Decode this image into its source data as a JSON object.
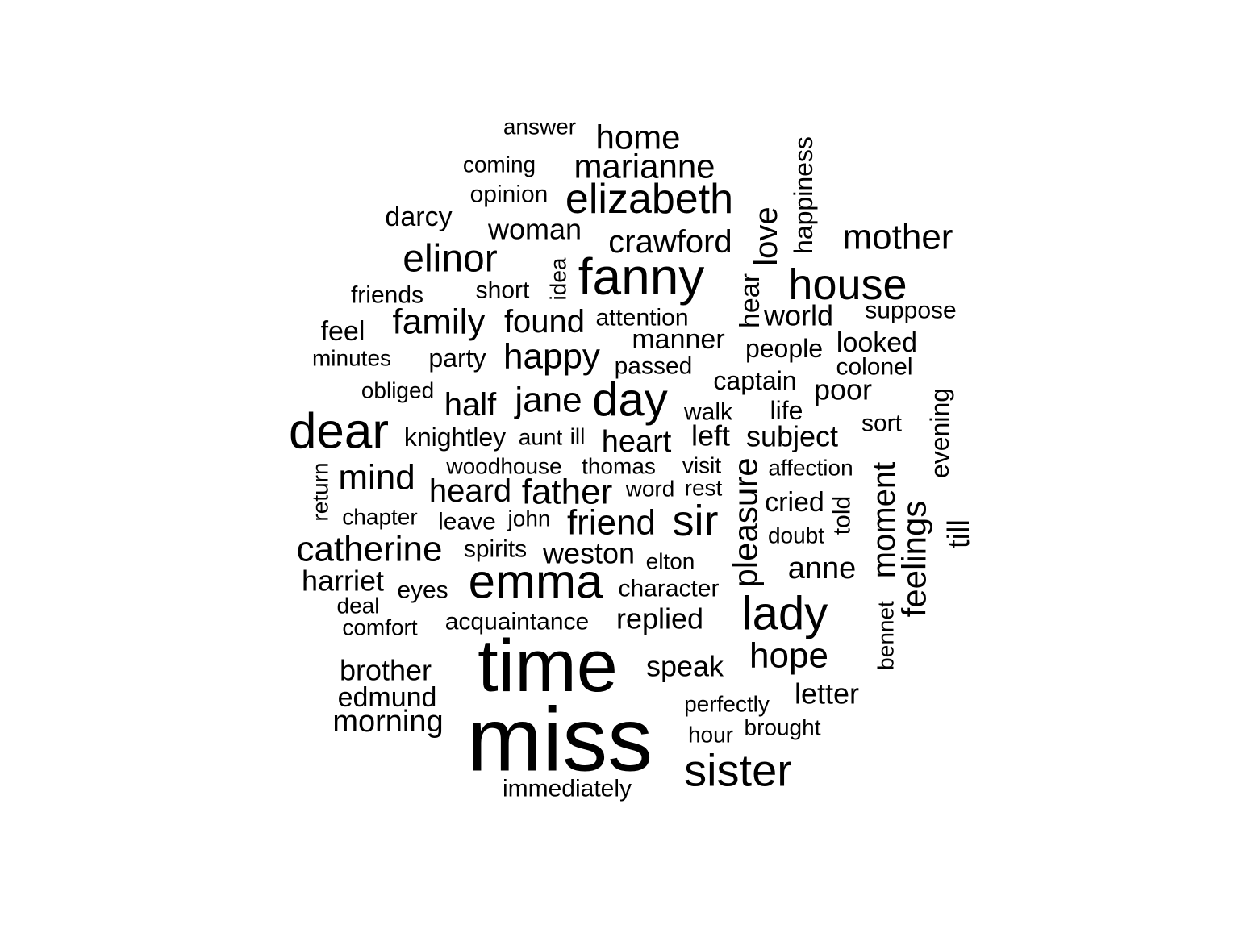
{
  "word_cloud": {
    "words": [
      {
        "text": "miss",
        "rotated": false
      },
      {
        "text": "time",
        "rotated": false
      },
      {
        "text": "fanny",
        "rotated": false
      },
      {
        "text": "emma",
        "rotated": false
      },
      {
        "text": "dear",
        "rotated": false
      },
      {
        "text": "sister",
        "rotated": false
      },
      {
        "text": "lady",
        "rotated": false
      },
      {
        "text": "house",
        "rotated": false
      },
      {
        "text": "elizabeth",
        "rotated": false
      },
      {
        "text": "day",
        "rotated": false
      },
      {
        "text": "sir",
        "rotated": false
      },
      {
        "text": "elinor",
        "rotated": false
      },
      {
        "text": "family",
        "rotated": false
      },
      {
        "text": "happy",
        "rotated": false
      },
      {
        "text": "jane",
        "rotated": false
      },
      {
        "text": "half",
        "rotated": false
      },
      {
        "text": "catherine",
        "rotated": false
      },
      {
        "text": "friend",
        "rotated": false
      },
      {
        "text": "father",
        "rotated": false
      },
      {
        "text": "hope",
        "rotated": false
      },
      {
        "text": "marianne",
        "rotated": false
      },
      {
        "text": "mother",
        "rotated": false
      },
      {
        "text": "home",
        "rotated": false
      },
      {
        "text": "crawford",
        "rotated": false
      },
      {
        "text": "mind",
        "rotated": false
      },
      {
        "text": "heard",
        "rotated": false
      },
      {
        "text": "heart",
        "rotated": false
      },
      {
        "text": "found",
        "rotated": false
      },
      {
        "text": "woman",
        "rotated": false
      },
      {
        "text": "morning",
        "rotated": false
      },
      {
        "text": "brother",
        "rotated": false
      },
      {
        "text": "edmund",
        "rotated": false
      },
      {
        "text": "anne",
        "rotated": false
      },
      {
        "text": "letter",
        "rotated": false
      },
      {
        "text": "speak",
        "rotated": false
      },
      {
        "text": "replied",
        "rotated": false
      },
      {
        "text": "weston",
        "rotated": false
      },
      {
        "text": "harriet",
        "rotated": false
      },
      {
        "text": "world",
        "rotated": false
      },
      {
        "text": "poor",
        "rotated": false
      },
      {
        "text": "subject",
        "rotated": false
      },
      {
        "text": "left",
        "rotated": false
      },
      {
        "text": "darcy",
        "rotated": false
      },
      {
        "text": "feel",
        "rotated": false
      },
      {
        "text": "manner",
        "rotated": false
      },
      {
        "text": "people",
        "rotated": false
      },
      {
        "text": "looked",
        "rotated": false
      },
      {
        "text": "captain",
        "rotated": false
      },
      {
        "text": "cried",
        "rotated": false
      },
      {
        "text": "knightley",
        "rotated": false
      },
      {
        "text": "acquaintance",
        "rotated": false
      },
      {
        "text": "character",
        "rotated": false
      },
      {
        "text": "immediately",
        "rotated": false
      },
      {
        "text": "party",
        "rotated": false
      },
      {
        "text": "short",
        "rotated": false
      },
      {
        "text": "friends",
        "rotated": false
      },
      {
        "text": "opinion",
        "rotated": false
      },
      {
        "text": "coming",
        "rotated": false
      },
      {
        "text": "answer",
        "rotated": false
      },
      {
        "text": "attention",
        "rotated": false
      },
      {
        "text": "passed",
        "rotated": false
      },
      {
        "text": "suppose",
        "rotated": false
      },
      {
        "text": "colonel",
        "rotated": false
      },
      {
        "text": "minutes",
        "rotated": false
      },
      {
        "text": "obliged",
        "rotated": false
      },
      {
        "text": "walk",
        "rotated": false
      },
      {
        "text": "life",
        "rotated": false
      },
      {
        "text": "sort",
        "rotated": false
      },
      {
        "text": "aunt",
        "rotated": false
      },
      {
        "text": "ill",
        "rotated": false
      },
      {
        "text": "woodhouse",
        "rotated": false
      },
      {
        "text": "thomas",
        "rotated": false
      },
      {
        "text": "visit",
        "rotated": false
      },
      {
        "text": "affection",
        "rotated": false
      },
      {
        "text": "word",
        "rotated": false
      },
      {
        "text": "rest",
        "rotated": false
      },
      {
        "text": "chapter",
        "rotated": false
      },
      {
        "text": "leave",
        "rotated": false
      },
      {
        "text": "john",
        "rotated": false
      },
      {
        "text": "doubt",
        "rotated": false
      },
      {
        "text": "spirits",
        "rotated": false
      },
      {
        "text": "elton",
        "rotated": false
      },
      {
        "text": "eyes",
        "rotated": false
      },
      {
        "text": "deal",
        "rotated": false
      },
      {
        "text": "comfort",
        "rotated": false
      },
      {
        "text": "perfectly",
        "rotated": false
      },
      {
        "text": "hour",
        "rotated": false
      },
      {
        "text": "brought",
        "rotated": false
      },
      {
        "text": "love",
        "rotated": true
      },
      {
        "text": "happiness",
        "rotated": true
      },
      {
        "text": "idea",
        "rotated": true
      },
      {
        "text": "hear",
        "rotated": true
      },
      {
        "text": "evening",
        "rotated": true
      },
      {
        "text": "return",
        "rotated": true
      },
      {
        "text": "pleasure",
        "rotated": true
      },
      {
        "text": "moment",
        "rotated": true
      },
      {
        "text": "feelings",
        "rotated": true
      },
      {
        "text": "told",
        "rotated": true
      },
      {
        "text": "till",
        "rotated": true
      },
      {
        "text": "bennet",
        "rotated": true
      }
    ]
  }
}
